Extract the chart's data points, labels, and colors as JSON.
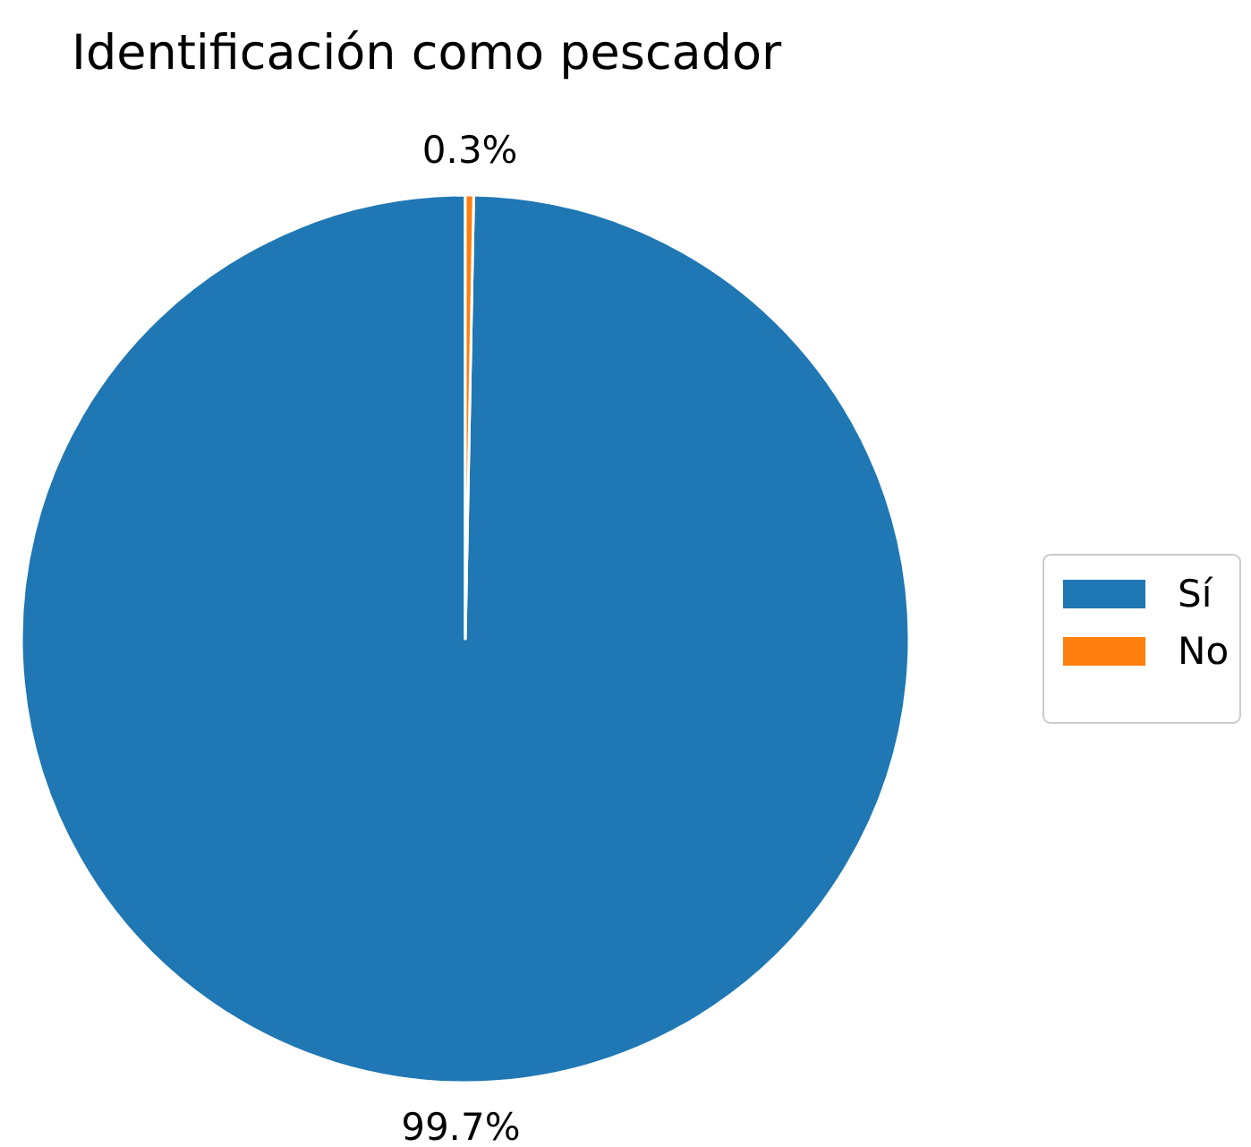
{
  "chart_data": {
    "type": "pie",
    "title": "Identificación como pescador",
    "categories": [
      "Sí",
      "No"
    ],
    "values": [
      99.7,
      0.3
    ],
    "colors": [
      "#1f77b4",
      "#ff7f0e"
    ],
    "value_labels": [
      "99.7%",
      "0.3%"
    ],
    "legend": "right"
  }
}
